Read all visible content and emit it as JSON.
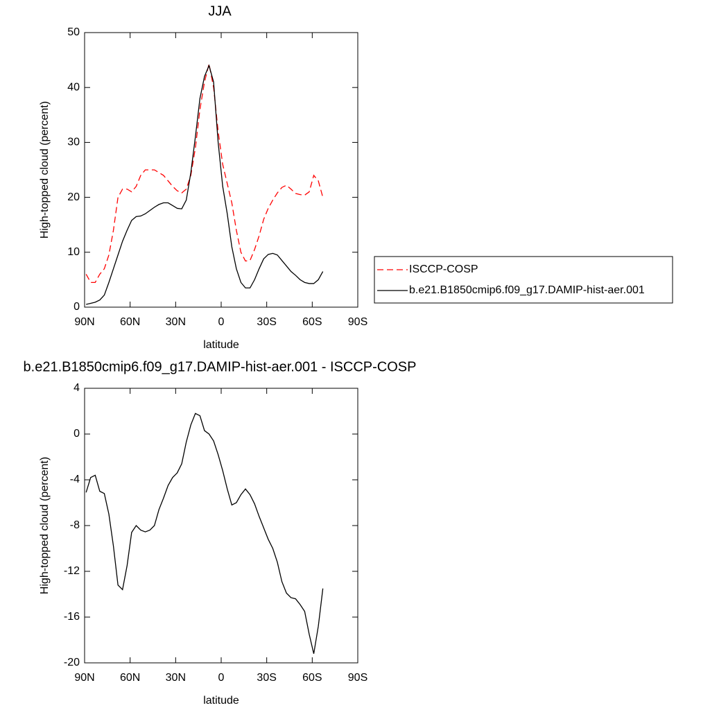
{
  "chart_data": [
    {
      "type": "line",
      "title": "JJA",
      "xlabel": "latitude",
      "ylabel": "High-topped cloud (percent)",
      "x": [
        89,
        86,
        83,
        80,
        77,
        74,
        71,
        68,
        65,
        62,
        59,
        56,
        53,
        50,
        47,
        44,
        41,
        38,
        35,
        32,
        29,
        26,
        23,
        20,
        17,
        14,
        11,
        8,
        5,
        2,
        -1,
        -4,
        -7,
        -10,
        -13,
        -16,
        -19,
        -22,
        -25,
        -28,
        -31,
        -34,
        -37,
        -40,
        -43,
        -46,
        -49,
        -52,
        -55,
        -58,
        -61,
        -64,
        -67
      ],
      "xlim": [
        90,
        -90
      ],
      "xticks": [
        {
          "value": 90,
          "label": "90N"
        },
        {
          "value": 60,
          "label": "60N"
        },
        {
          "value": 30,
          "label": "30N"
        },
        0,
        {
          "value": -30,
          "label": "30S"
        },
        {
          "value": -60,
          "label": "60S"
        },
        {
          "value": -90,
          "label": "90S"
        }
      ],
      "ylim": [
        0,
        50
      ],
      "yticks": [
        0,
        10,
        20,
        30,
        40,
        50
      ],
      "legend": "right",
      "series": [
        {
          "name": "ISCCP-COSP",
          "color": "#ff0000",
          "dash": true,
          "values": [
            6,
            4.5,
            4.5,
            6,
            7,
            9.5,
            14,
            20,
            21.5,
            21.5,
            21,
            22,
            24,
            25,
            25,
            25,
            24.5,
            24,
            23,
            22,
            21.2,
            20.8,
            21.5,
            24,
            29,
            36,
            41,
            44.3,
            40,
            32,
            26,
            22.5,
            19,
            14,
            10,
            8.4,
            8.5,
            10.5,
            13,
            16,
            18,
            19.5,
            20.8,
            21.8,
            22.2,
            21.5,
            20.7,
            20.5,
            20.4,
            21,
            24,
            23,
            20
          ]
        },
        {
          "name": "b.e21.B1850cmip6.f09_g17.DAMIP-hist-aer.001",
          "color": "#000000",
          "dash": false,
          "values": [
            0.5,
            0.7,
            0.9,
            1.3,
            2.2,
            4.5,
            7,
            9.5,
            12,
            14,
            15.8,
            16.5,
            16.6,
            17,
            17.6,
            18.2,
            18.7,
            19,
            19,
            18.5,
            18,
            17.9,
            19.5,
            24.5,
            31,
            38,
            42,
            44,
            41,
            30,
            22,
            17,
            11,
            7,
            4.5,
            3.5,
            3.5,
            5,
            7,
            8.8,
            9.6,
            9.8,
            9.5,
            8.5,
            7.5,
            6.5,
            5.8,
            5,
            4.5,
            4.3,
            4.3,
            5,
            6.5
          ]
        }
      ]
    },
    {
      "type": "line",
      "title": "b.e21.B1850cmip6.f09_g17.DAMIP-hist-aer.001 - ISCCP-COSP",
      "xlabel": "latitude",
      "ylabel": "High-topped cloud (percent)",
      "x": [
        89,
        86,
        83,
        80,
        77,
        74,
        71,
        68,
        65,
        62,
        59,
        56,
        53,
        50,
        47,
        44,
        41,
        38,
        35,
        32,
        29,
        26,
        23,
        20,
        17,
        14,
        11,
        8,
        5,
        2,
        -1,
        -4,
        -7,
        -10,
        -13,
        -16,
        -19,
        -22,
        -25,
        -28,
        -31,
        -34,
        -37,
        -40,
        -43,
        -46,
        -49,
        -52,
        -55,
        -58,
        -61,
        -64,
        -67
      ],
      "xlim": [
        90,
        -90
      ],
      "xticks": [
        {
          "value": 90,
          "label": "90N"
        },
        {
          "value": 60,
          "label": "60N"
        },
        {
          "value": 30,
          "label": "30N"
        },
        0,
        {
          "value": -30,
          "label": "30S"
        },
        {
          "value": -60,
          "label": "60S"
        },
        {
          "value": -90,
          "label": "90S"
        }
      ],
      "ylim": [
        -20,
        4
      ],
      "yticks": [
        -20,
        -16,
        -12,
        -8,
        -4,
        0,
        4
      ],
      "color": "#000000",
      "values": [
        -5.1,
        -3.8,
        -3.6,
        -5,
        -5.2,
        -7,
        -9.8,
        -13.2,
        -13.6,
        -11.5,
        -8.6,
        -8,
        -8.4,
        -8.55,
        -8.4,
        -8,
        -6.6,
        -5.6,
        -4.5,
        -3.8,
        -3.4,
        -2.6,
        -0.7,
        0.8,
        1.8,
        1.6,
        0.3,
        0,
        -0.6,
        -1.8,
        -3.2,
        -4.8,
        -6.2,
        -6,
        -5.3,
        -4.8,
        -5.3,
        -6.1,
        -7.2,
        -8.2,
        -9.2,
        -10,
        -11.2,
        -12.9,
        -13.9,
        -14.3,
        -14.4,
        -14.9,
        -15.5,
        -17.5,
        -19.2,
        -16.8,
        -13.5
      ]
    }
  ]
}
